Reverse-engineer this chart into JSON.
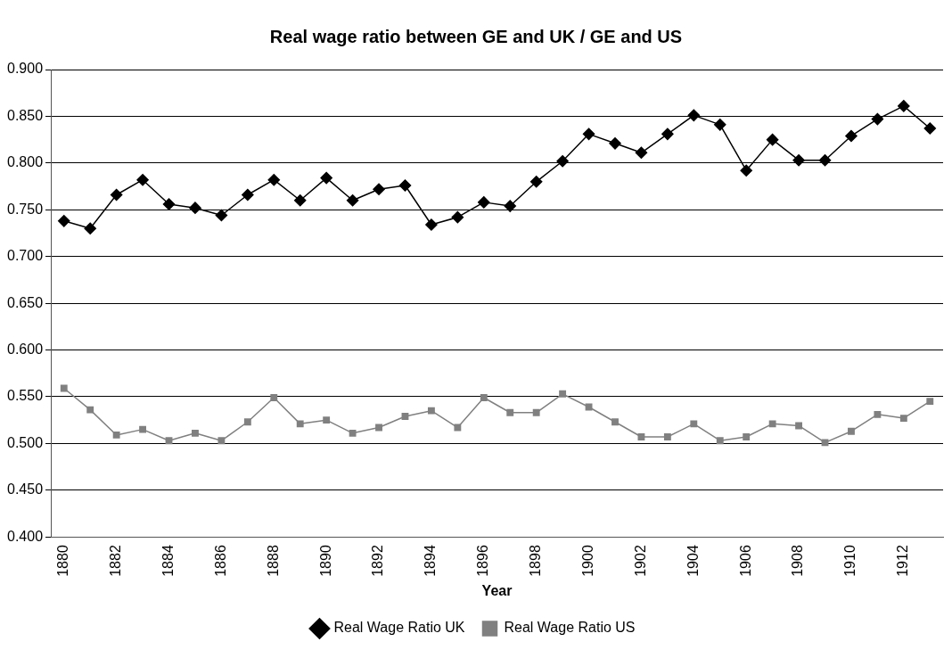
{
  "chart_data": {
    "type": "line",
    "title": "Real wage ratio between GE and UK / GE and US",
    "xlabel": "Year",
    "categories": [
      "1880",
      null,
      "1882",
      null,
      "1884",
      null,
      "1886",
      null,
      "1888",
      null,
      "1890",
      null,
      "1892",
      null,
      "1894",
      null,
      "1896",
      null,
      "1898",
      null,
      "1900",
      null,
      "1902",
      null,
      "1904",
      null,
      "1906",
      null,
      "1908",
      null,
      "1910",
      null,
      "1912",
      null
    ],
    "series": [
      {
        "name": "Real Wage Ratio UK",
        "color": "#000000",
        "marker": "diamond",
        "values": [
          0.738,
          0.73,
          0.766,
          0.782,
          0.756,
          0.752,
          0.744,
          0.766,
          0.782,
          0.76,
          0.784,
          0.76,
          0.772,
          0.776,
          0.734,
          0.742,
          0.758,
          0.754,
          0.78,
          0.802,
          0.831,
          0.821,
          0.811,
          0.831,
          0.851,
          0.841,
          0.792,
          0.825,
          0.803,
          0.803,
          0.829,
          0.847,
          0.861,
          0.837
        ]
      },
      {
        "name": "Real Wage Ratio US",
        "color": "#808080",
        "marker": "square",
        "values": [
          0.559,
          0.536,
          0.509,
          0.515,
          0.503,
          0.511,
          0.503,
          0.523,
          0.549,
          0.521,
          0.525,
          0.511,
          0.517,
          0.529,
          0.535,
          0.517,
          0.549,
          0.533,
          0.533,
          0.553,
          0.539,
          0.523,
          0.507,
          0.507,
          0.521,
          0.503,
          0.507,
          0.521,
          0.519,
          0.501,
          0.513,
          0.531,
          0.527,
          0.545
        ]
      }
    ],
    "ylim": [
      0.4,
      0.9
    ],
    "yticks": [
      {
        "value": 0.4,
        "label": "0.400"
      },
      {
        "value": 0.45,
        "label": "0.450"
      },
      {
        "value": 0.5,
        "label": "0.500"
      },
      {
        "value": 0.55,
        "label": "0.550"
      },
      {
        "value": 0.6,
        "label": "0.600"
      },
      {
        "value": 0.65,
        "label": "0.650"
      },
      {
        "value": 0.7,
        "label": "0.700"
      },
      {
        "value": 0.75,
        "label": "0.750"
      },
      {
        "value": 0.8,
        "label": "0.800"
      },
      {
        "value": 0.85,
        "label": "0.850"
      },
      {
        "value": 0.9,
        "label": "0.900"
      }
    ],
    "grid": "y",
    "legend": "bottom",
    "line_style": "solid"
  }
}
